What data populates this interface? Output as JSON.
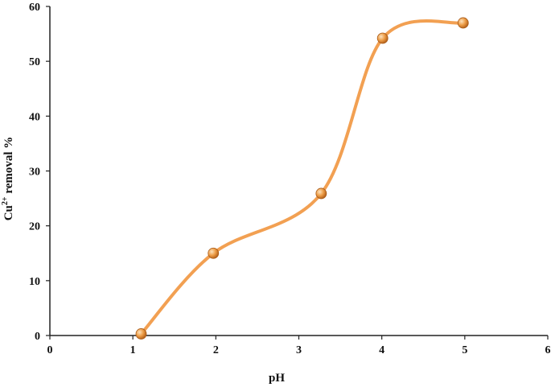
{
  "chart_data": {
    "type": "line",
    "xlabel": "pH",
    "ylabel_main": "Cu",
    "ylabel_sup": "2+",
    "ylabel_rest": " removal %",
    "xlim": [
      0,
      6
    ],
    "ylim": [
      0,
      60
    ],
    "x_ticks": [
      0,
      1,
      2,
      3,
      4,
      5,
      6
    ],
    "y_ticks": [
      0,
      10,
      20,
      30,
      40,
      50,
      60
    ],
    "grid": false,
    "legend": "none",
    "smooth": true,
    "line_color": "#F2A052",
    "marker_color": "#E8963A",
    "series": [
      {
        "x": [
          1.1,
          1.97,
          3.27,
          4.01,
          4.98
        ],
        "y": [
          0.3,
          15.0,
          25.9,
          54.2,
          57.0
        ]
      }
    ]
  }
}
